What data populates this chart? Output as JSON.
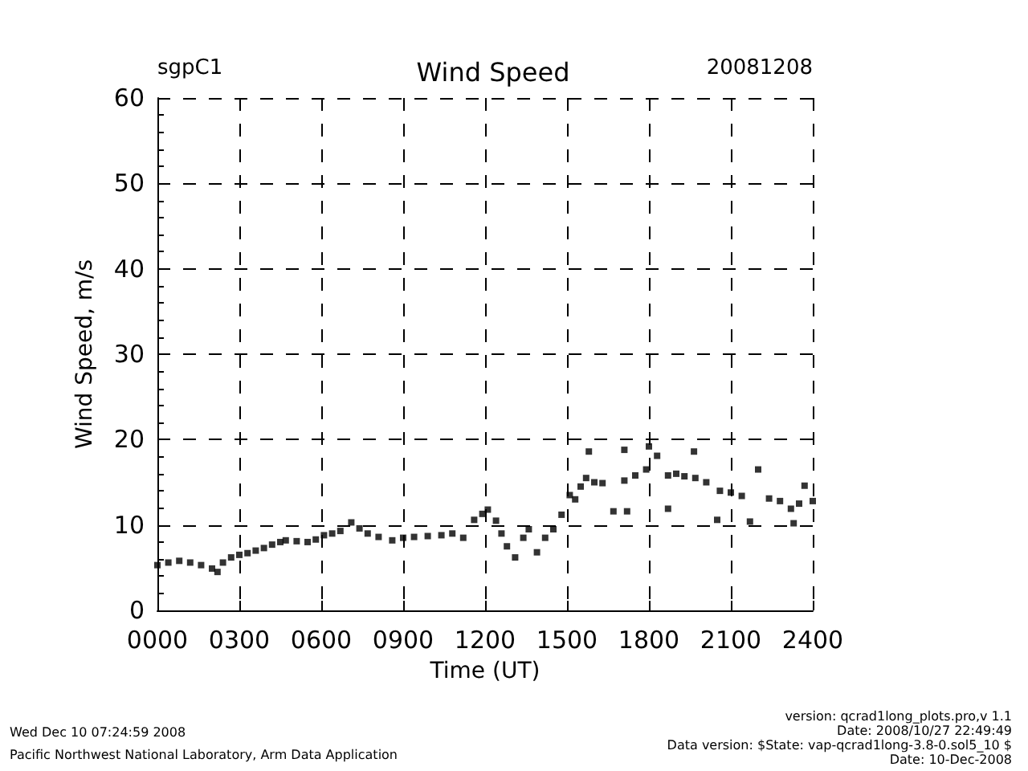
{
  "chart_data": {
    "type": "scatter",
    "title": "Wind Speed",
    "xlabel": "Time (UT)",
    "ylabel": "Wind Speed, m/s",
    "annotations": [
      "sgpC1",
      "20081208",
      "Wed Dec 10 07:24:59 2008",
      "Pacific Northwest National Laboratory, Arm Data Application",
      "version: qcrad1long_plots.pro,v 1.1",
      "Date: 2008/10/27 22:49:49",
      "Data version: $State: vap-qcrad1long-3.8-0.sol5_10 $",
      "Date: 10-Dec-2008"
    ],
    "x": [
      0,
      40,
      80,
      120,
      160,
      200,
      220,
      240,
      270,
      300,
      330,
      360,
      390,
      420,
      450,
      470,
      510,
      550,
      580,
      610,
      640,
      670,
      710,
      740,
      770,
      810,
      860,
      900,
      940,
      990,
      1040,
      1080,
      1120,
      1160,
      1190,
      1210,
      1240,
      1260,
      1280,
      1310,
      1340,
      1360,
      1390,
      1420,
      1450,
      1480,
      1510,
      1530,
      1550,
      1570,
      1580,
      1600,
      1630,
      1670,
      1710,
      1710,
      1720,
      1750,
      1790,
      1800,
      1830,
      1870,
      1870,
      1900,
      1930,
      1965,
      1970,
      2010,
      2050,
      2060,
      2100,
      2140,
      2170,
      2200,
      2240,
      2280,
      2320,
      2330,
      2350,
      2370,
      2400
    ],
    "values": [
      5.3,
      5.6,
      5.8,
      5.6,
      5.3,
      4.9,
      4.5,
      5.6,
      6.2,
      6.5,
      6.7,
      7.0,
      7.3,
      7.7,
      8.0,
      8.2,
      8.1,
      8.0,
      8.3,
      8.8,
      9.0,
      9.3,
      10.3,
      9.6,
      9.0,
      8.6,
      8.2,
      8.5,
      8.6,
      8.7,
      8.8,
      9.0,
      8.5,
      10.6,
      11.3,
      11.8,
      10.5,
      9.0,
      7.5,
      6.2,
      8.5,
      9.5,
      6.8,
      8.5,
      9.5,
      11.2,
      13.5,
      13.0,
      14.5,
      15.5,
      18.6,
      15.0,
      14.9,
      11.6,
      15.2,
      18.8,
      11.6,
      15.8,
      16.5,
      19.2,
      18.1,
      15.8,
      11.9,
      16.0,
      15.7,
      18.6,
      15.5,
      15.0,
      10.6,
      14.0,
      13.8,
      13.4,
      10.4,
      16.5,
      13.1,
      12.8,
      11.9,
      10.2,
      12.5,
      14.6,
      12.8
    ],
    "color": "#000000",
    "marker": "square",
    "grid": true,
    "xlim": [
      0,
      2400
    ],
    "xticks": [
      {
        "value": 0,
        "label": "0000"
      },
      {
        "value": 300,
        "label": "0300"
      },
      {
        "value": 600,
        "label": "0600"
      },
      {
        "value": 900,
        "label": "0900"
      },
      {
        "value": 1200,
        "label": "1200"
      },
      {
        "value": 1500,
        "label": "1500"
      },
      {
        "value": 1800,
        "label": "1800"
      },
      {
        "value": 2100,
        "label": "2100"
      },
      {
        "value": 2400,
        "label": "2400"
      }
    ],
    "ylim": [
      0,
      60
    ],
    "yticks": [
      0,
      10,
      20,
      30,
      40,
      50,
      60
    ]
  }
}
